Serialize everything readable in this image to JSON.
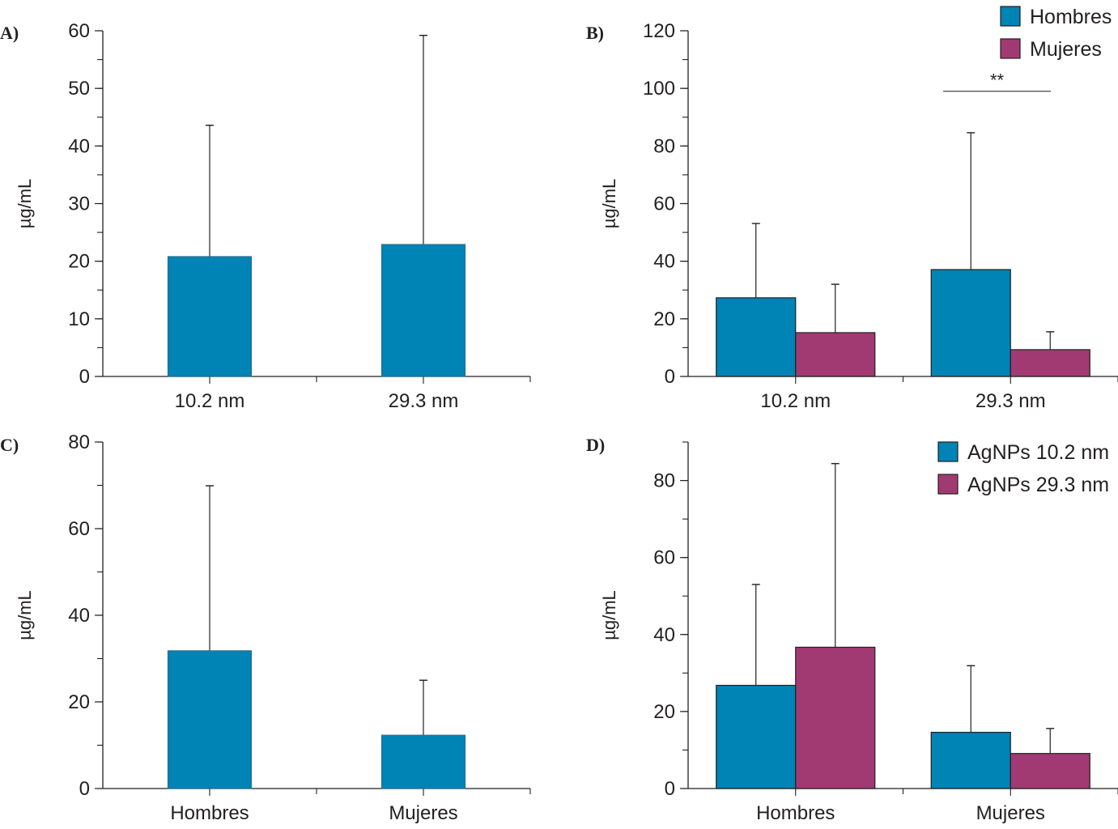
{
  "colors": {
    "hombres": "#0083b5",
    "mujeres": "#a13a72",
    "axis": "#231f20"
  },
  "chart_data": [
    {
      "panel": "A)",
      "type": "bar",
      "ylabel": "µg/mL",
      "xlabel": "",
      "ylim": [
        0,
        60
      ],
      "yticks": [
        0,
        10,
        20,
        30,
        40,
        50,
        60
      ],
      "categories": [
        "10.2 nm",
        "29.3 nm"
      ],
      "series": [
        {
          "name": "",
          "color_key": "hombres",
          "values": [
            20.8,
            22.9
          ],
          "error_upper": [
            43.6,
            59.2
          ]
        }
      ],
      "legend": [],
      "grid": false
    },
    {
      "panel": "B)",
      "type": "bar",
      "ylabel": "µg/mL",
      "xlabel": "",
      "ylim": [
        0,
        120
      ],
      "yticks": [
        0,
        20,
        40,
        60,
        80,
        100,
        120
      ],
      "categories": [
        "10.2 nm",
        "29.3 nm"
      ],
      "series": [
        {
          "name": "Hombres",
          "color_key": "hombres",
          "values": [
            27.3,
            37.1
          ],
          "error_upper": [
            53.1,
            84.6
          ]
        },
        {
          "name": "Mujeres",
          "color_key": "mujeres",
          "values": [
            15.2,
            9.3
          ],
          "error_upper": [
            32.0,
            15.5
          ]
        }
      ],
      "legend": [
        "Hombres",
        "Mujeres"
      ],
      "legend_position": "top-right",
      "annotations": [
        {
          "text": "**",
          "category": "29.3 nm",
          "y": 99
        }
      ],
      "grid": false
    },
    {
      "panel": "C)",
      "type": "bar",
      "ylabel": "µg/mL",
      "xlabel": "",
      "ylim": [
        0,
        80
      ],
      "yticks": [
        0,
        20,
        40,
        60,
        80
      ],
      "categories": [
        "Hombres",
        "Mujeres"
      ],
      "series": [
        {
          "name": "",
          "color_key": "hombres",
          "values": [
            31.8,
            12.3
          ],
          "error_upper": [
            69.9,
            25.0
          ]
        }
      ],
      "legend": [],
      "grid": false
    },
    {
      "panel": "D)",
      "type": "bar",
      "ylabel": "µg/mL",
      "xlabel": "",
      "ylim": [
        0,
        90
      ],
      "yticks": [
        0,
        20,
        40,
        60,
        80
      ],
      "categories": [
        "Hombres",
        "Mujeres"
      ],
      "series": [
        {
          "name": "AgNPs 10.2 nm",
          "color_key": "hombres",
          "values": [
            26.8,
            14.6
          ],
          "error_upper": [
            53.0,
            31.9
          ]
        },
        {
          "name": "AgNPs 29.3 nm",
          "color_key": "mujeres",
          "values": [
            36.7,
            9.1
          ],
          "error_upper": [
            84.4,
            15.6
          ]
        }
      ],
      "legend": [
        "AgNPs 10.2 nm",
        "AgNPs 29.3 nm"
      ],
      "legend_position": "top-right",
      "grid": false
    }
  ]
}
